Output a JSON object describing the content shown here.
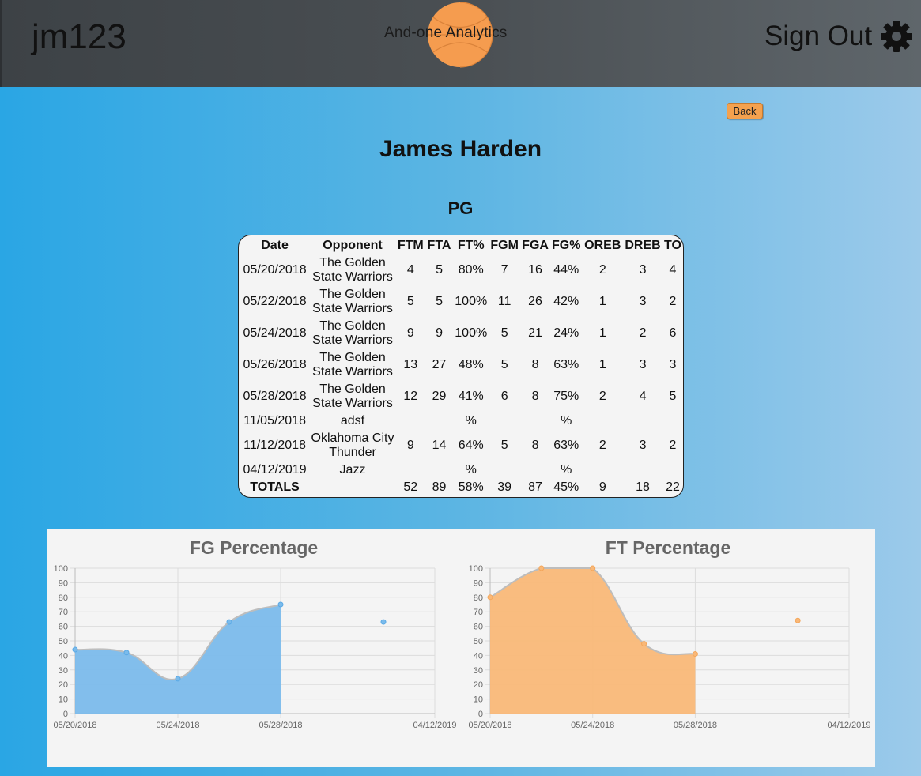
{
  "header": {
    "username": "jm123",
    "logo_text": "And-one Analytics",
    "signout_label": "Sign Out",
    "settings_icon": "gear-icon"
  },
  "back_label": "Back",
  "player": {
    "name": "James Harden",
    "position": "PG"
  },
  "table": {
    "headers": [
      "Date",
      "Opponent",
      "FTM",
      "FTA",
      "FT%",
      "FGM",
      "FGA",
      "FG%",
      "OREB",
      "DREB",
      "TO"
    ],
    "rows": [
      {
        "date": "05/20/2018",
        "opp1": "The Golden",
        "opp2": "State Warriors",
        "ftm": "4",
        "fta": "5",
        "ftp": "80%",
        "fgm": "7",
        "fga": "16",
        "fgp": "44%",
        "oreb": "2",
        "dreb": "3",
        "to": "4"
      },
      {
        "date": "05/22/2018",
        "opp1": "The Golden",
        "opp2": "State Warriors",
        "ftm": "5",
        "fta": "5",
        "ftp": "100%",
        "fgm": "11",
        "fga": "26",
        "fgp": "42%",
        "oreb": "1",
        "dreb": "3",
        "to": "2"
      },
      {
        "date": "05/24/2018",
        "opp1": "The Golden",
        "opp2": "State Warriors",
        "ftm": "9",
        "fta": "9",
        "ftp": "100%",
        "fgm": "5",
        "fga": "21",
        "fgp": "24%",
        "oreb": "1",
        "dreb": "2",
        "to": "6"
      },
      {
        "date": "05/26/2018",
        "opp1": "The Golden",
        "opp2": "State Warriors",
        "ftm": "13",
        "fta": "27",
        "ftp": "48%",
        "fgm": "5",
        "fga": "8",
        "fgp": "63%",
        "oreb": "1",
        "dreb": "3",
        "to": "3"
      },
      {
        "date": "05/28/2018",
        "opp1": "The Golden",
        "opp2": "State Warriors",
        "ftm": "12",
        "fta": "29",
        "ftp": "41%",
        "fgm": "6",
        "fga": "8",
        "fgp": "75%",
        "oreb": "2",
        "dreb": "4",
        "to": "5"
      },
      {
        "date": "11/05/2018",
        "opp1": "adsf",
        "opp2": "",
        "ftm": "",
        "fta": "",
        "ftp": "%",
        "fgm": "",
        "fga": "",
        "fgp": "%",
        "oreb": "",
        "dreb": "",
        "to": ""
      },
      {
        "date": "11/12/2018",
        "opp1": "Oklahoma City",
        "opp2": "Thunder",
        "ftm": "9",
        "fta": "14",
        "ftp": "64%",
        "fgm": "5",
        "fga": "8",
        "fgp": "63%",
        "oreb": "2",
        "dreb": "3",
        "to": "2"
      },
      {
        "date": "04/12/2019",
        "opp1": "Jazz",
        "opp2": "",
        "ftm": "",
        "fta": "",
        "ftp": "%",
        "fgm": "",
        "fga": "",
        "fgp": "%",
        "oreb": "",
        "dreb": "",
        "to": ""
      }
    ],
    "totals": {
      "label": "TOTALS",
      "ftm": "52",
      "fta": "89",
      "ftp": "58%",
      "fgm": "39",
      "fga": "87",
      "fgp": "45%",
      "oreb": "9",
      "dreb": "18",
      "to": "22"
    }
  },
  "chart_data": [
    {
      "type": "area",
      "title": "FG Percentage",
      "x": [
        "05/20/2018",
        "05/22/2018",
        "05/24/2018",
        "05/26/2018",
        "05/28/2018",
        "11/05/2018",
        "11/12/2018",
        "04/12/2019"
      ],
      "x_tick_labels": [
        "05/20/2018",
        "05/24/2018",
        "05/28/2018",
        "04/12/2019"
      ],
      "values": [
        44,
        42,
        24,
        63,
        75,
        null,
        63,
        null
      ],
      "ylim": [
        0,
        100
      ],
      "y_ticks": [
        0,
        10,
        20,
        30,
        40,
        50,
        60,
        70,
        80,
        90,
        100
      ],
      "grid": true,
      "color": "#5aa9e6",
      "fill": "#7bbbeb"
    },
    {
      "type": "area",
      "title": "FT Percentage",
      "x": [
        "05/20/2018",
        "05/22/2018",
        "05/24/2018",
        "05/26/2018",
        "05/28/2018",
        "11/05/2018",
        "11/12/2018",
        "04/12/2019"
      ],
      "x_tick_labels": [
        "05/20/2018",
        "05/24/2018",
        "05/28/2018",
        "04/12/2019"
      ],
      "values": [
        80,
        100,
        100,
        48,
        41,
        null,
        64,
        null
      ],
      "ylim": [
        0,
        100
      ],
      "y_ticks": [
        0,
        10,
        20,
        30,
        40,
        50,
        60,
        70,
        80,
        90,
        100
      ],
      "grid": true,
      "color": "#f4a65a",
      "fill": "#f9b878"
    }
  ]
}
